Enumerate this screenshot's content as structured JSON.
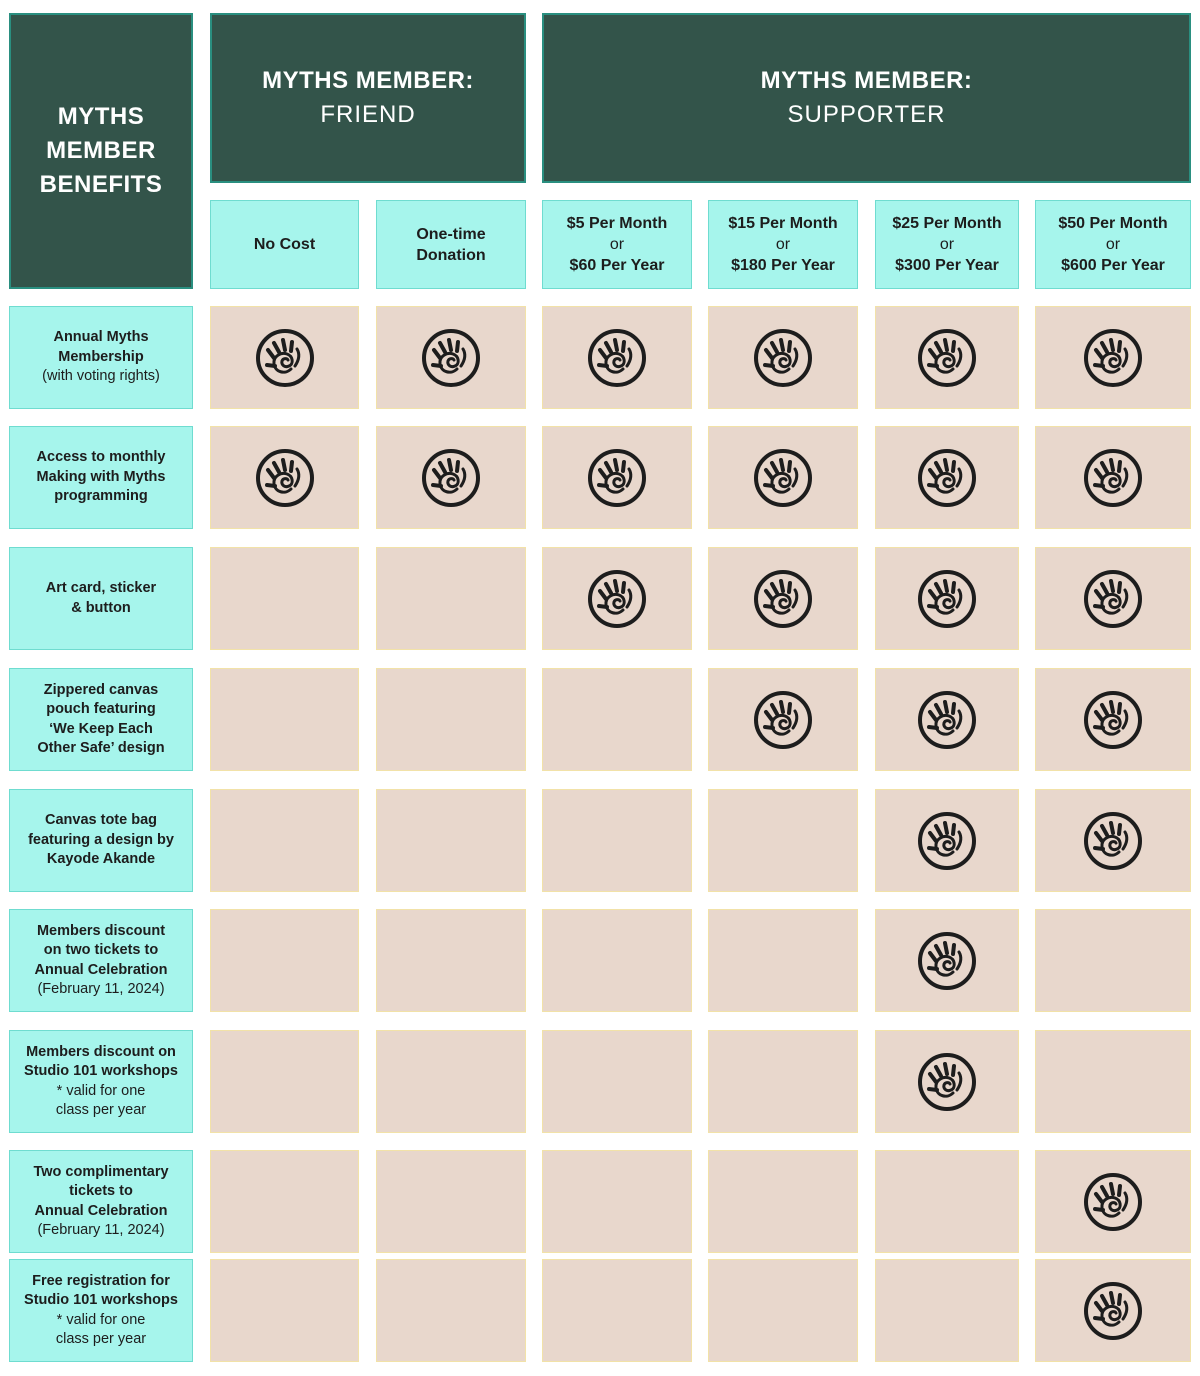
{
  "corner": [
    "MYTHS",
    "MEMBER",
    "BENEFITS"
  ],
  "groups": {
    "friend": {
      "title": "MYTHS MEMBER:",
      "subtitle": "FRIEND"
    },
    "supporter": {
      "title": "MYTHS MEMBER:",
      "subtitle": "SUPPORTER"
    }
  },
  "tiers": [
    {
      "line1": "No Cost"
    },
    {
      "line1": "One-time",
      "line2": "Donation"
    },
    {
      "line1": "$5 Per Month",
      "or": "or",
      "line2": "$60 Per Year"
    },
    {
      "line1": "$15 Per Month",
      "or": "or",
      "line2": "$180 Per Year"
    },
    {
      "line1": "$25 Per Month",
      "or": "or",
      "line2": "$300 Per Year"
    },
    {
      "line1": "$50 Per Month",
      "or": "or",
      "line2": "$600 Per Year"
    }
  ],
  "benefits": [
    {
      "bold": [
        "Annual Myths",
        "Membership"
      ],
      "normal": [
        "(with voting rights)"
      ],
      "included": [
        true,
        true,
        true,
        true,
        true,
        true
      ]
    },
    {
      "bold": [
        "Access to monthly",
        "Making with Myths",
        "programming"
      ],
      "normal": [],
      "included": [
        true,
        true,
        true,
        true,
        true,
        true
      ]
    },
    {
      "bold": [
        "Art card, sticker",
        "& button"
      ],
      "normal": [],
      "included": [
        false,
        false,
        true,
        true,
        true,
        true
      ]
    },
    {
      "bold": [
        "Zippered canvas",
        "pouch featuring",
        "‘We Keep Each",
        "Other Safe’ design"
      ],
      "normal": [],
      "included": [
        false,
        false,
        false,
        true,
        true,
        true
      ]
    },
    {
      "bold": [
        "Canvas tote bag",
        "featuring a design by",
        "Kayode Akande"
      ],
      "normal": [],
      "included": [
        false,
        false,
        false,
        false,
        true,
        true
      ]
    },
    {
      "bold": [
        "Members discount",
        "on two tickets to",
        "Annual Celebration"
      ],
      "normal": [
        "(February 11, 2024)"
      ],
      "included": [
        false,
        false,
        false,
        false,
        true,
        false
      ]
    },
    {
      "bold": [
        "Members discount on",
        "Studio 101 workshops"
      ],
      "normal": [
        "* valid for one",
        "class per year"
      ],
      "included": [
        false,
        false,
        false,
        false,
        true,
        false
      ]
    },
    {
      "bold": [
        "Two complimentary",
        "tickets to",
        "Annual Celebration"
      ],
      "normal": [
        "(February 11, 2024)"
      ],
      "included": [
        false,
        false,
        false,
        false,
        false,
        true
      ]
    },
    {
      "bold": [
        "Free registration for",
        "Studio 101 workshops"
      ],
      "normal": [
        "* valid for one",
        "class per year"
      ],
      "included": [
        false,
        false,
        false,
        false,
        false,
        true
      ]
    }
  ],
  "icon": "spiral-hand-icon",
  "colors": {
    "dark": "#33544a",
    "teal": "#a6f5ec",
    "pink": "#e8d7cc",
    "icon": "#1d1d1d"
  }
}
